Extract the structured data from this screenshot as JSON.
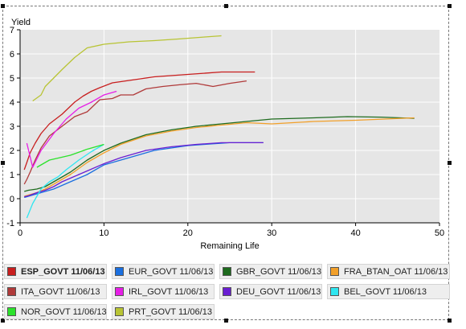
{
  "chart_data": {
    "type": "line",
    "title": "",
    "ylabel": "Yield",
    "xlabel": "Remaining Life",
    "xlim": [
      0,
      50
    ],
    "ylim": [
      -1,
      7
    ],
    "x_ticks": [
      "0",
      "10",
      "20",
      "30",
      "40",
      "50"
    ],
    "y_ticks": [
      "-1",
      "0",
      "1",
      "2",
      "3",
      "4",
      "5",
      "6",
      "7"
    ],
    "grid": true,
    "legend_position": "bottom",
    "series": [
      {
        "name": "ESP_GOVT 11/06/13",
        "color": "#c81e1e",
        "x": [
          0.5,
          0.8,
          1.2,
          1.8,
          2.5,
          3.5,
          5,
          6.5,
          7.5,
          8.5,
          9.5,
          11,
          13,
          16,
          20,
          24,
          28
        ],
        "y": [
          1.2,
          1.5,
          1.9,
          2.3,
          2.7,
          3.1,
          3.5,
          4.0,
          4.25,
          4.45,
          4.6,
          4.8,
          4.9,
          5.05,
          5.15,
          5.25,
          5.25
        ]
      },
      {
        "name": "EUR_GOVT 11/06/13",
        "color": "#1a6fe0",
        "x": [
          0.5,
          1,
          2,
          3,
          4,
          5,
          6,
          8,
          10,
          12,
          14,
          16,
          18,
          20,
          22,
          25,
          29
        ],
        "y": [
          0.05,
          0.1,
          0.2,
          0.3,
          0.4,
          0.55,
          0.7,
          1.0,
          1.4,
          1.6,
          1.8,
          2.0,
          2.1,
          2.2,
          2.25,
          2.32,
          2.32
        ]
      },
      {
        "name": "GBR_GOVT 11/06/13",
        "color": "#1e6b1e",
        "x": [
          0.5,
          1,
          2,
          3,
          4,
          5,
          6,
          8,
          10,
          12,
          15,
          18,
          21,
          24,
          27,
          30,
          35,
          39,
          43,
          47
        ],
        "y": [
          0.3,
          0.35,
          0.4,
          0.5,
          0.7,
          0.9,
          1.1,
          1.6,
          2.0,
          2.3,
          2.65,
          2.85,
          3.0,
          3.1,
          3.2,
          3.3,
          3.35,
          3.4,
          3.38,
          3.33
        ]
      },
      {
        "name": "FRA_BTAN_OAT 11/06/13",
        "color": "#f2a02a",
        "x": [
          0.5,
          1,
          2,
          3,
          4,
          5,
          6,
          8,
          10,
          12,
          15,
          18,
          21,
          24,
          27,
          30,
          35,
          40,
          47
        ],
        "y": [
          0.1,
          0.15,
          0.25,
          0.4,
          0.6,
          0.8,
          1.0,
          1.5,
          1.9,
          2.25,
          2.6,
          2.8,
          2.95,
          3.05,
          3.15,
          3.1,
          3.2,
          3.25,
          3.35
        ]
      },
      {
        "name": "ITA_GOVT 11/06/13",
        "color": "#b03a3a",
        "x": [
          0.5,
          0.8,
          1.2,
          1.8,
          2.5,
          3.5,
          5,
          6.5,
          8,
          9.5,
          11,
          12,
          13.5,
          15,
          17,
          19,
          21,
          23,
          25,
          27
        ],
        "y": [
          0.6,
          0.8,
          1.1,
          1.6,
          2.1,
          2.6,
          3.0,
          3.4,
          3.6,
          4.1,
          4.15,
          4.3,
          4.3,
          4.55,
          4.65,
          4.72,
          4.78,
          4.65,
          4.78,
          4.88
        ]
      },
      {
        "name": "IRL_GOVT 11/06/13",
        "color": "#e61ee6",
        "x": [
          0.8,
          1.5,
          2.5,
          4,
          5.5,
          7,
          8.5,
          10,
          11.5
        ],
        "y": [
          2.3,
          1.3,
          2.0,
          2.7,
          3.3,
          3.75,
          4.0,
          4.3,
          4.45
        ]
      },
      {
        "name": "DEU_GOVT 11/06/13",
        "color": "#6a1ed2",
        "x": [
          0.5,
          1,
          2,
          3,
          4,
          5,
          6,
          8,
          10,
          12,
          15,
          18,
          21,
          24,
          27,
          29
        ],
        "y": [
          0.08,
          0.12,
          0.25,
          0.35,
          0.5,
          0.7,
          0.85,
          1.15,
          1.45,
          1.7,
          2.0,
          2.15,
          2.25,
          2.32,
          2.32,
          2.32
        ]
      },
      {
        "name": "BEL_GOVT 11/06/13",
        "color": "#2ee6f0",
        "x": [
          0.8,
          1.5,
          2.5,
          3.5,
          4.5,
          5.5,
          7,
          8.5,
          10
        ],
        "y": [
          -0.8,
          -0.2,
          0.4,
          0.7,
          0.9,
          1.2,
          1.6,
          1.95,
          2.25
        ]
      },
      {
        "name": "NOR_GOVT 11/06/13",
        "color": "#2be22b",
        "x": [
          2,
          3.5,
          6,
          8,
          10
        ],
        "y": [
          1.3,
          1.6,
          1.8,
          2.05,
          2.25
        ]
      },
      {
        "name": "PRT_GOVT 11/06/13",
        "color": "#b8c434",
        "x": [
          1.5,
          2.5,
          3,
          4,
          5,
          6.5,
          8,
          10,
          13,
          16,
          19,
          22,
          24
        ],
        "y": [
          4.05,
          4.3,
          4.65,
          5.0,
          5.35,
          5.85,
          6.25,
          6.4,
          6.5,
          6.55,
          6.62,
          6.7,
          6.75
        ]
      }
    ]
  },
  "legend": {
    "items": [
      {
        "label": "ESP_GOVT 11/06/13",
        "color": "#c81e1e",
        "selected": true
      },
      {
        "label": "EUR_GOVT 11/06/13",
        "color": "#1a6fe0",
        "selected": false
      },
      {
        "label": "GBR_GOVT 11/06/13",
        "color": "#1e6b1e",
        "selected": false
      },
      {
        "label": "FRA_BTAN_OAT 11/06/13",
        "color": "#f2a02a",
        "selected": false
      },
      {
        "label": "ITA_GOVT 11/06/13",
        "color": "#b03a3a",
        "selected": false
      },
      {
        "label": "IRL_GOVT 11/06/13",
        "color": "#e61ee6",
        "selected": false
      },
      {
        "label": "DEU_GOVT 11/06/13",
        "color": "#6a1ed2",
        "selected": false
      },
      {
        "label": "BEL_GOVT 11/06/13",
        "color": "#2ee6f0",
        "selected": false
      },
      {
        "label": "NOR_GOVT 11/06/13",
        "color": "#2be22b",
        "selected": false
      },
      {
        "label": "PRT_GOVT 11/06/13",
        "color": "#b8c434",
        "selected": false
      }
    ]
  },
  "colors": {
    "plot_background": "#e6e6e6",
    "grid": "#ffffff"
  }
}
